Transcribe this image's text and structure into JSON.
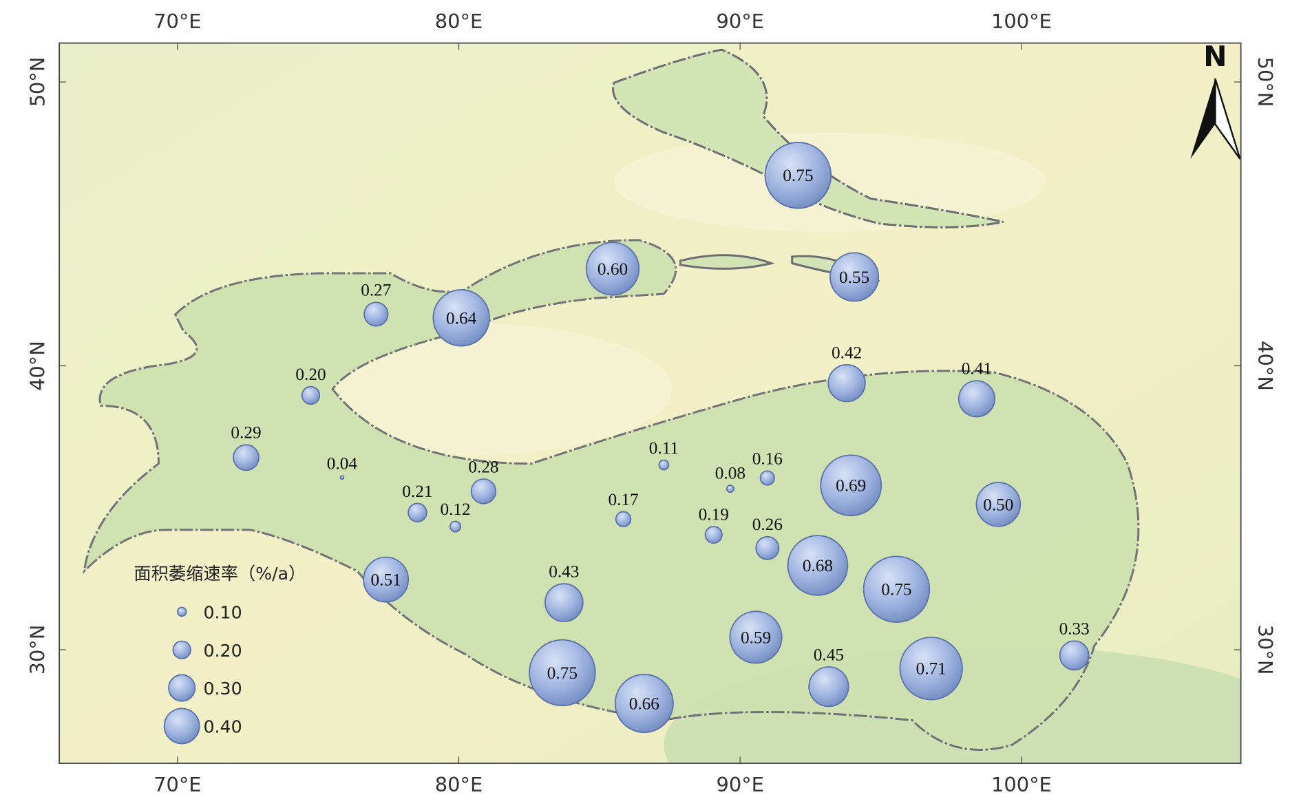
{
  "chart_data": {
    "type": "bubble_map",
    "legend_title": "面积萎缩速率（%/a）",
    "north_label": "N",
    "xlim": [
      65.8,
      107.8
    ],
    "ylim": [
      26.0,
      51.37
    ],
    "xticks": [
      {
        "value": 70,
        "label": "70°E"
      },
      {
        "value": 80,
        "label": "80°E"
      },
      {
        "value": 90,
        "label": "90°E"
      },
      {
        "value": 100,
        "label": "100°E"
      }
    ],
    "yticks": [
      {
        "value": 30,
        "label": "30°N"
      },
      {
        "value": 40,
        "label": "40°N"
      },
      {
        "value": 50,
        "label": "50°N"
      }
    ],
    "x": [
      92.06,
      85.47,
      94.06,
      77.06,
      80.09,
      93.79,
      98.41,
      74.74,
      72.44,
      75.85,
      87.29,
      90.97,
      89.65,
      80.88,
      93.94,
      99.18,
      78.53,
      79.88,
      85.85,
      89.06,
      90.97,
      92.76,
      77.41,
      95.56,
      83.74,
      90.56,
      101.88,
      83.68,
      96.79,
      93.15,
      86.59
    ],
    "y": [
      46.71,
      43.42,
      43.13,
      41.82,
      41.69,
      39.39,
      38.84,
      38.96,
      36.77,
      36.07,
      36.51,
      36.05,
      35.67,
      35.58,
      35.79,
      35.12,
      34.83,
      34.34,
      34.6,
      34.05,
      33.58,
      32.97,
      32.47,
      32.13,
      31.66,
      30.44,
      29.8,
      29.19,
      29.34,
      28.7,
      28.11
    ],
    "values": [
      0.75,
      0.6,
      0.55,
      0.27,
      0.64,
      0.42,
      0.41,
      0.2,
      0.29,
      0.04,
      0.11,
      0.16,
      0.08,
      0.28,
      0.69,
      0.5,
      0.21,
      0.12,
      0.17,
      0.19,
      0.26,
      0.68,
      0.51,
      0.75,
      0.43,
      0.59,
      0.33,
      0.75,
      0.71,
      0.45,
      0.66
    ],
    "value_labels": [
      "0.75",
      "0.60",
      "0.55",
      "0.27",
      "0.64",
      "0.42",
      "0.41",
      "0.20",
      "0.29",
      "0.04",
      "0.11",
      "0.16",
      "0.08",
      "0.28",
      "0.69",
      "0.50",
      "0.21",
      "0.12",
      "0.17",
      "0.19",
      "0.26",
      "0.68",
      "0.51",
      "0.75",
      "0.43",
      "0.59",
      "0.33",
      "0.75",
      "0.71",
      "0.45",
      "0.66"
    ],
    "color": "#9fb4e0",
    "size_legend": {
      "values": [
        0.1,
        0.2,
        0.3,
        0.4
      ],
      "labels": [
        "0.10",
        "0.20",
        "0.30",
        "0.40"
      ]
    }
  }
}
